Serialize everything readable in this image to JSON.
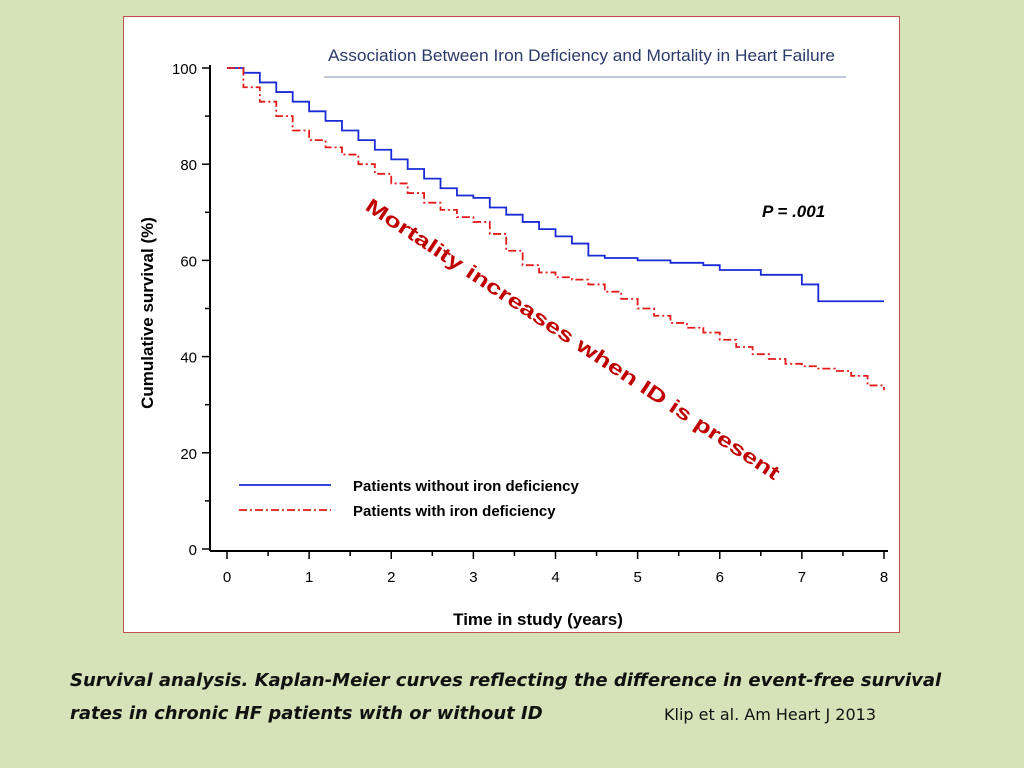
{
  "caption": {
    "line1": "Survival analysis. Kaplan-Meier curves reflecting the difference in event-free survival",
    "line2": "rates in chronic HF patients with or without ID"
  },
  "citation": "Klip et al. Am Heart J 2013",
  "colors": {
    "background": "#d6e3b9",
    "no_id": "#1a2bd6",
    "with_id": "#e21b1b",
    "annotation": "#c00000"
  },
  "chart_data": {
    "type": "line",
    "title": "Association Between Iron Deficiency and Mortality in Heart Failure",
    "xlabel": "Time in study (years)",
    "ylabel": "Cumulative survival (%)",
    "xlim": [
      0,
      8
    ],
    "ylim": [
      0,
      100
    ],
    "xticks": [
      "0",
      "1",
      "2",
      "3",
      "4",
      "5",
      "6",
      "7",
      "8"
    ],
    "yticks": [
      "0",
      "20",
      "40",
      "60",
      "80",
      "100"
    ],
    "grid": false,
    "legend_position": "bottom-left",
    "annotations": {
      "p_value": "P = .001",
      "mortality": "Mortality increases when ID is present"
    },
    "series": [
      {
        "name": "Patients without iron deficiency",
        "style": "solid",
        "color": "#1a2bd6",
        "x": [
          0,
          0.2,
          0.4,
          0.6,
          0.8,
          1.0,
          1.2,
          1.4,
          1.6,
          1.8,
          2.0,
          2.2,
          2.4,
          2.6,
          2.8,
          3.0,
          3.2,
          3.4,
          3.6,
          3.8,
          4.0,
          4.2,
          4.4,
          4.6,
          5.0,
          5.4,
          5.8,
          6.0,
          6.5,
          7.0,
          7.2,
          7.6,
          8.0
        ],
        "y": [
          100,
          99,
          97,
          95,
          93,
          91,
          89,
          87,
          85,
          83,
          81,
          79,
          77,
          75,
          73.5,
          73,
          71,
          69.5,
          68,
          66.5,
          65,
          63.5,
          61,
          60.5,
          60,
          59.5,
          59,
          58,
          57,
          55,
          51.5,
          51.5,
          51.5
        ]
      },
      {
        "name": "Patients with iron deficiency",
        "style": "dash-dot",
        "color": "#e21b1b",
        "x": [
          0,
          0.2,
          0.4,
          0.6,
          0.8,
          1.0,
          1.2,
          1.4,
          1.6,
          1.8,
          2.0,
          2.2,
          2.4,
          2.6,
          2.8,
          3.0,
          3.2,
          3.4,
          3.6,
          3.8,
          4.0,
          4.2,
          4.4,
          4.6,
          4.8,
          5.0,
          5.2,
          5.4,
          5.6,
          5.8,
          6.0,
          6.2,
          6.4,
          6.6,
          6.8,
          7.0,
          7.2,
          7.4,
          7.6,
          7.8,
          8.0
        ],
        "y": [
          100,
          96,
          93,
          90,
          87,
          85,
          83.5,
          82,
          80,
          78,
          76,
          74,
          72,
          70.5,
          69,
          68,
          65.5,
          62,
          59,
          57.5,
          56.5,
          56,
          55,
          53.5,
          52,
          50,
          48.5,
          47,
          46,
          45,
          43.5,
          42,
          40.5,
          39.5,
          38.5,
          38,
          37.5,
          37,
          36,
          34,
          33
        ]
      }
    ]
  }
}
